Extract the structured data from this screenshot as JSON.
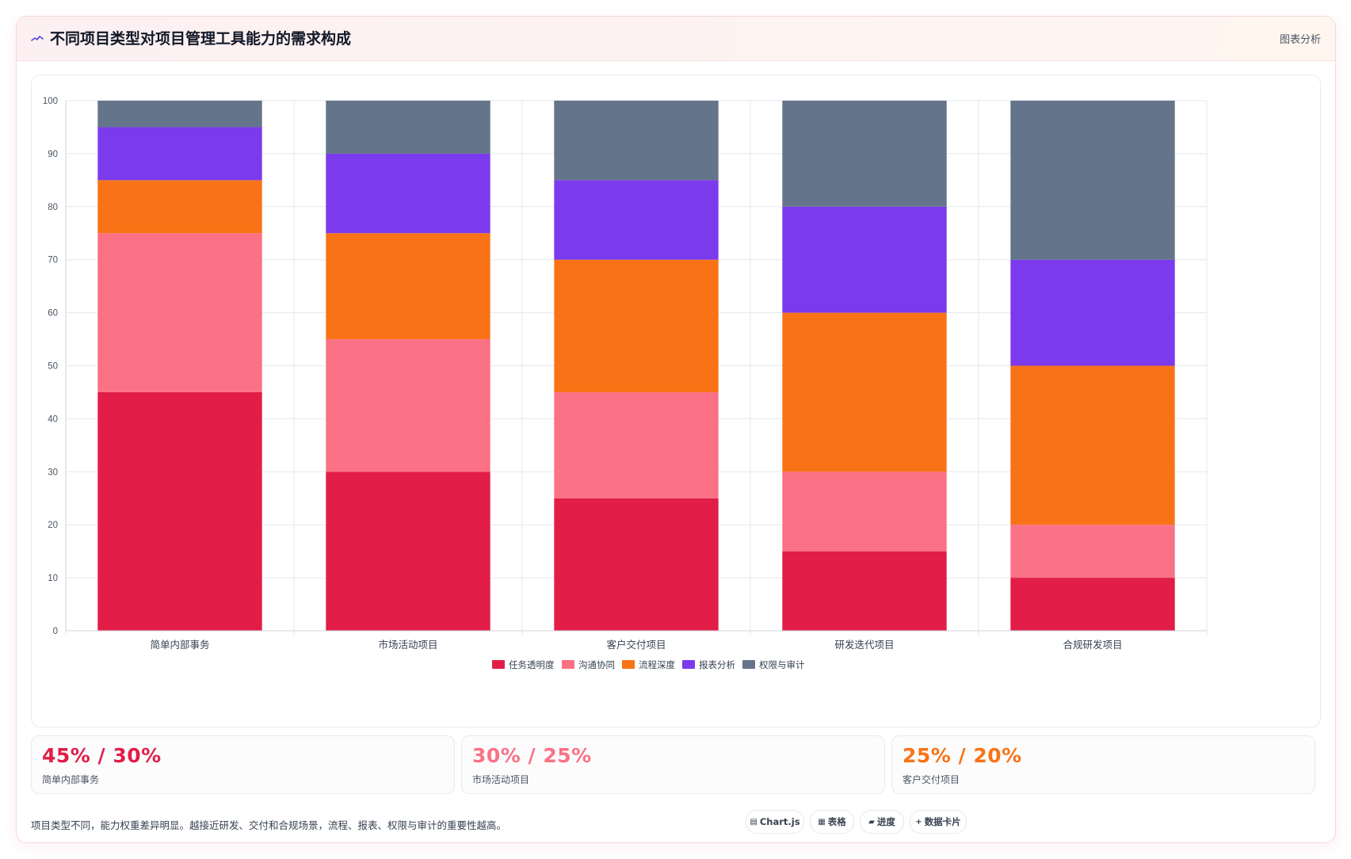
{
  "header": {
    "title": "不同项目类型对项目管理工具能力的需求构成",
    "tag": "图表分析",
    "icon": "chart-line-icon"
  },
  "chart_data": {
    "type": "bar",
    "stacked": true,
    "categories": [
      "简单内部事务",
      "市场活动项目",
      "客户交付项目",
      "研发迭代项目",
      "合规研发项目"
    ],
    "series": [
      {
        "name": "任务透明度",
        "color": "#e11d48",
        "values": [
          45,
          30,
          25,
          15,
          10
        ]
      },
      {
        "name": "沟通协同",
        "color": "#fb7185",
        "values": [
          30,
          25,
          20,
          15,
          10
        ]
      },
      {
        "name": "流程深度",
        "color": "#f97316",
        "values": [
          10,
          20,
          25,
          30,
          30
        ]
      },
      {
        "name": "报表分析",
        "color": "#7c3aed",
        "values": [
          10,
          15,
          15,
          20,
          20
        ]
      },
      {
        "name": "权限与审计",
        "color": "#64748b",
        "values": [
          5,
          10,
          15,
          20,
          30
        ]
      }
    ],
    "ylim": [
      0,
      100
    ],
    "yticks": [
      0,
      10,
      20,
      30,
      40,
      50,
      60,
      70,
      80,
      90,
      100
    ],
    "grid": true,
    "legend_position": "bottom"
  },
  "stats": [
    {
      "value": "45% / 30%",
      "label": "简单内部事务",
      "color": "#e11d48"
    },
    {
      "value": "30% / 25%",
      "label": "市场活动项目",
      "color": "#fb7185"
    },
    {
      "value": "25% / 20%",
      "label": "客户交付项目",
      "color": "#f97316"
    }
  ],
  "footer": {
    "note": "项目类型不同，能力权重差异明显。越接近研发、交付和合规场景，流程、报表、权限与审计的重要性越高。",
    "chips": [
      {
        "icon": "▤",
        "icon_name": "chart-icon",
        "label": "Chart.js"
      },
      {
        "icon": "▦",
        "icon_name": "table-icon",
        "label": "表格"
      },
      {
        "icon": "▰",
        "icon_name": "progress-icon",
        "label": "进度"
      },
      {
        "icon": "+",
        "icon_name": "plus-icon",
        "label": "数据卡片"
      }
    ]
  }
}
